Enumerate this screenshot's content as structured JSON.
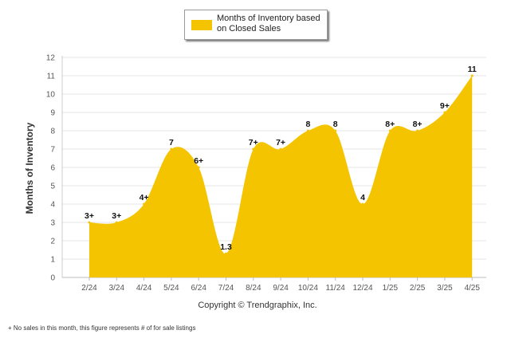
{
  "legend": {
    "label": "Months of Inventory based on Closed Sales"
  },
  "copyright": "Copyright © Trendgraphix, Inc.",
  "footnote": "+ No sales in this month, this figure represents # of for sale listings",
  "chart_data": {
    "type": "area",
    "title": "",
    "xlabel": "",
    "ylabel": "Months of Inventory",
    "ylim": [
      0,
      12
    ],
    "yticks": [
      0,
      1,
      2,
      3,
      4,
      5,
      6,
      7,
      8,
      9,
      10,
      11,
      12
    ],
    "grid": true,
    "legend_position": "top-center",
    "color": "#F5C400",
    "categories": [
      "2/24",
      "3/24",
      "4/24",
      "5/24",
      "6/24",
      "7/24",
      "8/24",
      "9/24",
      "10/24",
      "11/24",
      "12/24",
      "1/25",
      "2/25",
      "3/25",
      "4/25"
    ],
    "series": [
      {
        "name": "Months of Inventory based on Closed Sales",
        "values": [
          3,
          3,
          4,
          7,
          6,
          1.3,
          7,
          7,
          8,
          8,
          4,
          8,
          8,
          9,
          11
        ],
        "labels": [
          "3+",
          "3+",
          "4+",
          "7",
          "6+",
          "1.3",
          "7+",
          "7+",
          "8",
          "8",
          "4",
          "8+",
          "8+",
          "9+",
          "11"
        ]
      }
    ]
  }
}
